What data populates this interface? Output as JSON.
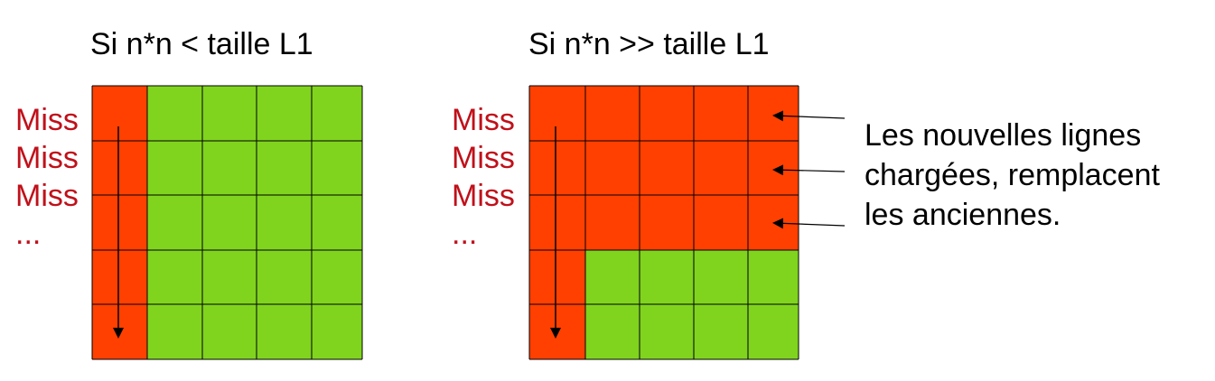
{
  "left": {
    "title": "Si n*n < taille L1",
    "miss_labels": [
      "Miss",
      "Miss",
      "Miss",
      "..."
    ]
  },
  "right": {
    "title": "Si n*n >> taille L1",
    "miss_labels": [
      "Miss",
      "Miss",
      "Miss",
      "..."
    ]
  },
  "annotation": {
    "lines": [
      "Les nouvelles lignes",
      "chargées, remplacent",
      "les anciennes."
    ]
  },
  "colors": {
    "miss_red": "#ff4000",
    "hit_green": "#80d41e",
    "miss_text": "#c0101a"
  }
}
